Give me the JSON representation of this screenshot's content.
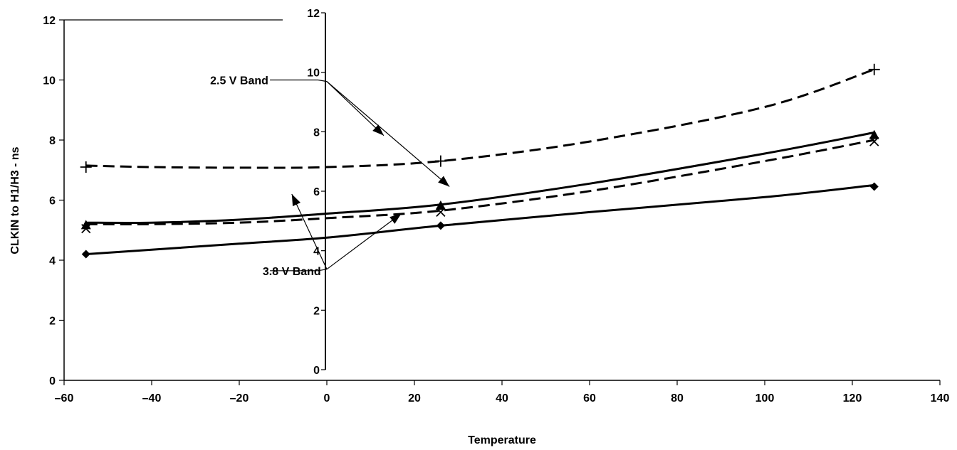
{
  "chart_data": {
    "type": "line",
    "title": "",
    "xlabel": "Temperature",
    "ylabel": "CLKIN to H1/H3 - ns",
    "xlim": [
      -60,
      140
    ],
    "ylim": [
      0,
      12
    ],
    "xticks": [
      -60,
      -40,
      -20,
      0,
      20,
      40,
      60,
      80,
      100,
      120,
      140
    ],
    "xtick_labels": [
      "–60",
      "–40",
      "–20",
      "0",
      "20",
      "40",
      "60",
      "80",
      "100",
      "120",
      "140"
    ],
    "yticks": [
      0,
      2,
      4,
      6,
      8,
      10,
      12
    ],
    "yticks_inner": [
      0,
      2,
      4,
      6,
      8,
      10,
      12
    ],
    "grid": false,
    "legend": "none",
    "series": [
      {
        "marker": "plus",
        "line_style": "dashed",
        "points": [
          [
            -55,
            7.1
          ],
          [
            26,
            7.3
          ],
          [
            125,
            10.35
          ]
        ],
        "curve": [
          [
            -55,
            7.15
          ],
          [
            -40,
            7.1
          ],
          [
            -20,
            7.08
          ],
          [
            0,
            7.1
          ],
          [
            26,
            7.3
          ],
          [
            60,
            7.95
          ],
          [
            100,
            9.1
          ],
          [
            125,
            10.35
          ]
        ]
      },
      {
        "marker": "triangle",
        "line_style": "solid",
        "points": [
          [
            -55,
            5.15
          ],
          [
            26,
            5.8
          ],
          [
            125,
            8.15
          ]
        ],
        "curve": [
          [
            -55,
            5.25
          ],
          [
            -40,
            5.25
          ],
          [
            -20,
            5.35
          ],
          [
            0,
            5.55
          ],
          [
            26,
            5.85
          ],
          [
            60,
            6.55
          ],
          [
            100,
            7.55
          ],
          [
            125,
            8.25
          ]
        ]
      },
      {
        "marker": "x",
        "line_style": "dashed",
        "points": [
          [
            -55,
            5.05
          ],
          [
            26,
            5.6
          ],
          [
            125,
            7.95
          ]
        ],
        "curve": [
          [
            -55,
            5.2
          ],
          [
            -40,
            5.2
          ],
          [
            -20,
            5.25
          ],
          [
            0,
            5.4
          ],
          [
            26,
            5.65
          ],
          [
            60,
            6.3
          ],
          [
            100,
            7.3
          ],
          [
            125,
            8.0
          ]
        ]
      },
      {
        "marker": "diamond",
        "line_style": "solid",
        "points": [
          [
            -55,
            4.2
          ],
          [
            26,
            5.15
          ],
          [
            125,
            6.45
          ]
        ],
        "curve": [
          [
            -55,
            4.2
          ],
          [
            -40,
            4.35
          ],
          [
            -20,
            4.55
          ],
          [
            0,
            4.75
          ],
          [
            26,
            5.15
          ],
          [
            60,
            5.6
          ],
          [
            100,
            6.1
          ],
          [
            125,
            6.5
          ]
        ]
      }
    ],
    "annotations": [
      {
        "text": "2.5 V Band",
        "anchor_x": -20,
        "anchor_y": 10.0,
        "line": [
          [
            -13,
            10.0
          ],
          [
            -2,
            10.0
          ],
          [
            0,
            9.95
          ]
        ],
        "arrows": [
          [
            [
              0,
              9.95
            ],
            [
              13,
              8.15
            ]
          ],
          [
            [
              0,
              9.95
            ],
            [
              28,
              6.45
            ]
          ]
        ]
      },
      {
        "text": "3.8 V Band",
        "anchor_x": -8,
        "anchor_y": 3.65,
        "line": [
          [
            -13,
            3.65
          ],
          [
            -2,
            3.65
          ],
          [
            0,
            3.7
          ]
        ],
        "arrows": [
          [
            [
              0,
              3.7
            ],
            [
              -8,
              6.2
            ]
          ],
          [
            [
              0,
              3.7
            ],
            [
              17,
              5.55
            ]
          ]
        ]
      }
    ]
  }
}
